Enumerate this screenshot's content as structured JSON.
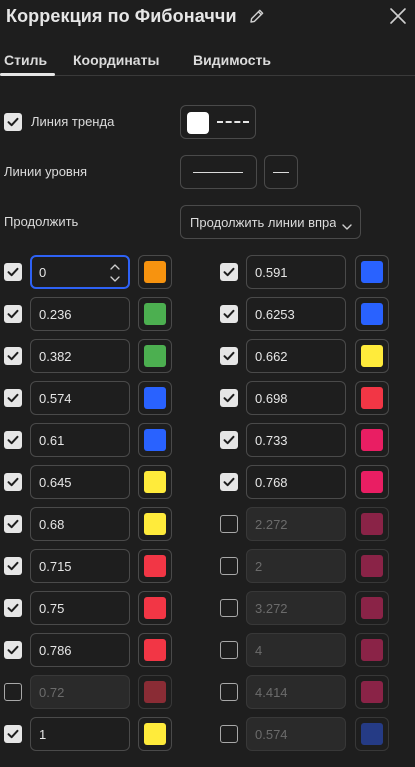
{
  "header": {
    "title": "Коррекция по Фибоначчи"
  },
  "tabs": [
    {
      "label": "Стиль",
      "active": true
    },
    {
      "label": "Координаты",
      "active": false
    },
    {
      "label": "Видимость",
      "active": false
    }
  ],
  "style": {
    "trend_line": {
      "label": "Линия тренда",
      "checked": true,
      "color": "#ffffff"
    },
    "level_lines": {
      "label": "Линии уровня"
    },
    "extend": {
      "label": "Продолжить",
      "value": "Продолжить линии вправо"
    }
  },
  "levels_left": [
    {
      "value": "0",
      "checked": true,
      "color": "#f7930f",
      "focused": true
    },
    {
      "value": "0.236",
      "checked": true,
      "color": "#4caf50"
    },
    {
      "value": "0.382",
      "checked": true,
      "color": "#4caf50"
    },
    {
      "value": "0.574",
      "checked": true,
      "color": "#2962ff"
    },
    {
      "value": "0.61",
      "checked": true,
      "color": "#2962ff"
    },
    {
      "value": "0.645",
      "checked": true,
      "color": "#ffeb3b"
    },
    {
      "value": "0.68",
      "checked": true,
      "color": "#ffeb3b"
    },
    {
      "value": "0.715",
      "checked": true,
      "color": "#f23645"
    },
    {
      "value": "0.75",
      "checked": true,
      "color": "#f23645"
    },
    {
      "value": "0.786",
      "checked": true,
      "color": "#f23645"
    },
    {
      "value": "0.72",
      "checked": false,
      "color": "#8a2c35"
    },
    {
      "value": "1",
      "checked": true,
      "color": "#ffeb3b"
    }
  ],
  "levels_right": [
    {
      "value": "0.591",
      "checked": true,
      "color": "#2962ff"
    },
    {
      "value": "0.6253",
      "checked": true,
      "color": "#2962ff"
    },
    {
      "value": "0.662",
      "checked": true,
      "color": "#ffeb3b"
    },
    {
      "value": "0.698",
      "checked": true,
      "color": "#f23645"
    },
    {
      "value": "0.733",
      "checked": true,
      "color": "#e91e63"
    },
    {
      "value": "0.768",
      "checked": true,
      "color": "#e91e63"
    },
    {
      "value": "2.272",
      "checked": false,
      "color": "#8a2347"
    },
    {
      "value": "2",
      "checked": false,
      "color": "#8a2347"
    },
    {
      "value": "3.272",
      "checked": false,
      "color": "#8a2347"
    },
    {
      "value": "4",
      "checked": false,
      "color": "#8a2347"
    },
    {
      "value": "4.414",
      "checked": false,
      "color": "#8a2347"
    },
    {
      "value": "0.574",
      "checked": false,
      "color": "#253b85"
    }
  ]
}
